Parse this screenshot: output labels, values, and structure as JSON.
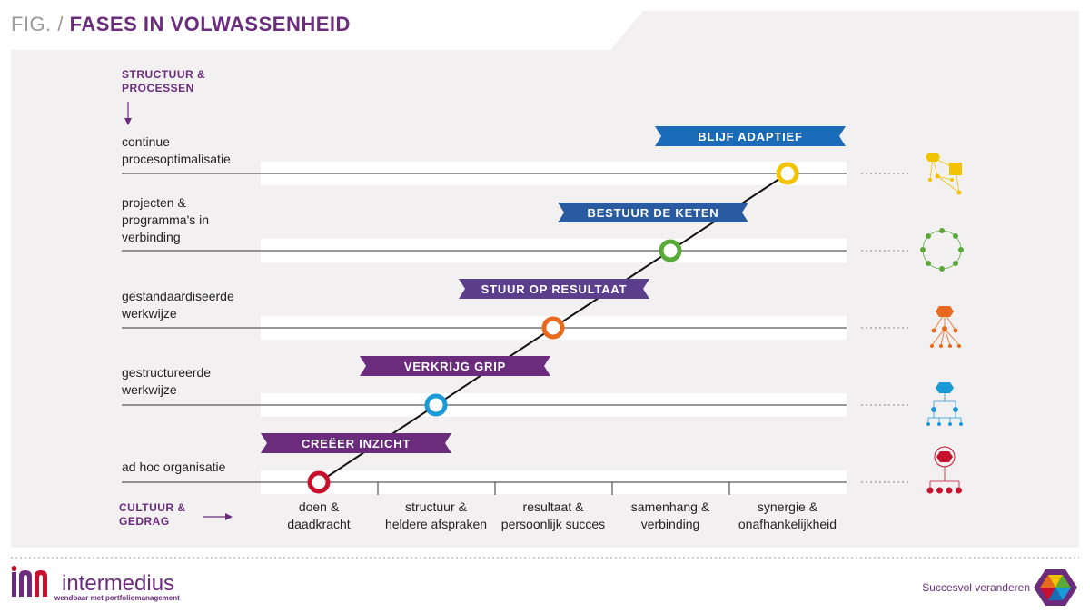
{
  "title": {
    "prefix": "FIG. /",
    "main": "FASES IN VOLWASSENHEID"
  },
  "axis": {
    "y_title": [
      "STRUCTUUR &",
      "PROCESSEN"
    ],
    "x_title": [
      "CULTUUR &",
      "GEDRAG"
    ]
  },
  "levels": [
    {
      "lines": [
        "ad hoc organisatie"
      ]
    },
    {
      "lines": [
        "gestructureerde",
        "werkwijze"
      ]
    },
    {
      "lines": [
        "gestandaardiseerde",
        "werkwijze"
      ]
    },
    {
      "lines": [
        "projecten &",
        "programma's in",
        "verbinding"
      ]
    },
    {
      "lines": [
        "continue",
        "procesoptimalisatie"
      ]
    }
  ],
  "columns": [
    {
      "lines": [
        "doen &",
        "daadkracht"
      ]
    },
    {
      "lines": [
        "structuur &",
        "heldere afspraken"
      ]
    },
    {
      "lines": [
        "resultaat &",
        "persoonlijk succes"
      ]
    },
    {
      "lines": [
        "samenhang &",
        "verbinding"
      ]
    },
    {
      "lines": [
        "synergie &",
        "onafhankelijkheid"
      ]
    }
  ],
  "phases": [
    {
      "label": "CREËER INZICHT",
      "color": "#6b2c7e",
      "marker_color": "#c8102e"
    },
    {
      "label": "VERKRIJG GRIP",
      "color": "#6b2c7e",
      "marker_color": "#1a9bd7"
    },
    {
      "label": "STUUR OP RESULTAAT",
      "color": "#5b3f8c",
      "marker_color": "#e86a1f"
    },
    {
      "label": "BESTUUR DE KETEN",
      "color": "#2a5aa0",
      "marker_color": "#5aaa3a"
    },
    {
      "label": "BLIJF ADAPTIEF",
      "color": "#1a6bb8",
      "marker_color": "#f2c300"
    }
  ],
  "logo": {
    "name": "intermedius",
    "subtitle": "wendbaar met portfoliomanagement"
  },
  "tagline": "Succesvol veranderen"
}
